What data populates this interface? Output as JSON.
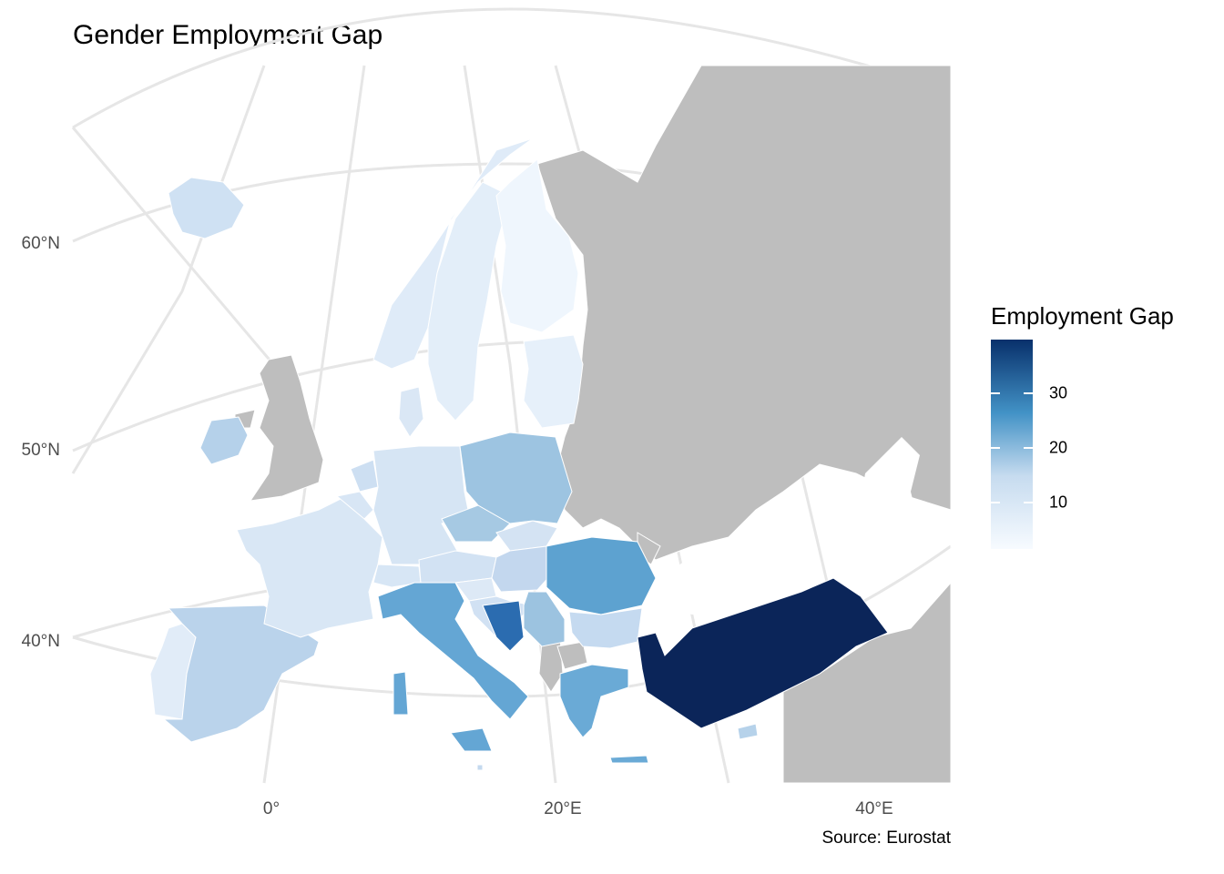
{
  "title": "Gender Employment Gap",
  "caption": "Source: Eurostat",
  "axis": {
    "lon_labels": [
      "0°",
      "20°E",
      "40°E"
    ],
    "lat_labels": [
      "60°N",
      "50°N",
      "40°N"
    ]
  },
  "legend": {
    "title": "Employment Gap",
    "ticks": [
      "30",
      "20",
      "10"
    ],
    "color_low": "#f7fbff",
    "color_high": "#08306b"
  },
  "colors": {
    "no_data": "#bebebe",
    "graticule": "#e6e6e6",
    "border": "#ffffff"
  },
  "countries": {
    "turkey": "#0b2559",
    "bosnia": "#2b6cb0",
    "romania": "#5da2d0",
    "italy": "#64a6d4",
    "greece": "#6aaad6",
    "serbia": "#9cc3e0",
    "poland": "#9dc4e1",
    "czechia": "#a6c9e3",
    "spain": "#bad3eb",
    "iceland": "#cfe1f3",
    "bulgaria": "#c5daf0",
    "hungary": "#c3d7ee",
    "ireland": "#b5d1ea",
    "france": "#d9e7f5",
    "germany": "#d6e5f4",
    "austria": "#d2e2f3",
    "slovakia": "#d4e3f3",
    "croatia": "#d1e1f3",
    "slovenia": "#dde9f6",
    "switzerland": "#d7e6f5",
    "norway": "#dfebf8",
    "sweden": "#e3eef9",
    "finland": "#eff6fd",
    "baltics": "#e6f0fa",
    "denmark": "#dae7f5",
    "netherlands": "#cddff2",
    "belgium": "#d8e6f5",
    "portugal": "#e1ecf8",
    "cyprus": "#b6d2ea",
    "malta": "#c4d9ef"
  }
}
